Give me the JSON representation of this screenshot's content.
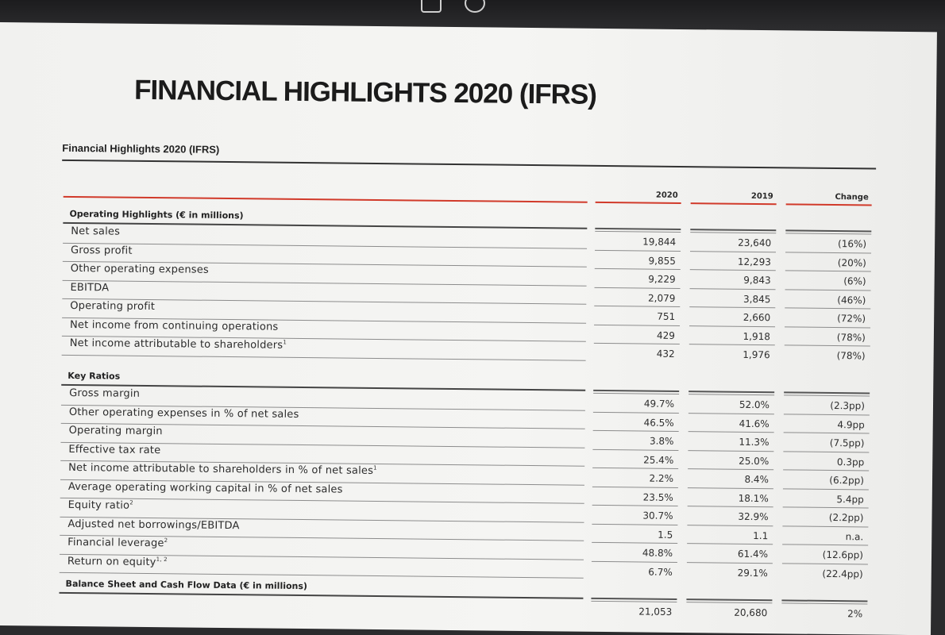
{
  "document": {
    "main_title": "FINANCIAL HIGHLIGHTS 2020 (IFRS)",
    "subtitle": "Financial Highlights 2020 (IFRS)"
  },
  "columns": [
    "2020",
    "2019",
    "Change"
  ],
  "sections": [
    {
      "title": "Operating Highlights (€ in millions)",
      "rows": [
        {
          "label": "Net sales",
          "sup": "",
          "v2020": "19,844",
          "v2019": "23,640",
          "change": "(16%)"
        },
        {
          "label": "Gross profit",
          "sup": "",
          "v2020": "9,855",
          "v2019": "12,293",
          "change": "(20%)"
        },
        {
          "label": "Other operating expenses",
          "sup": "",
          "v2020": "9,229",
          "v2019": "9,843",
          "change": "(6%)"
        },
        {
          "label": "EBITDA",
          "sup": "",
          "v2020": "2,079",
          "v2019": "3,845",
          "change": "(46%)"
        },
        {
          "label": "Operating profit",
          "sup": "",
          "v2020": "751",
          "v2019": "2,660",
          "change": "(72%)"
        },
        {
          "label": "Net income from continuing operations",
          "sup": "",
          "v2020": "429",
          "v2019": "1,918",
          "change": "(78%)"
        },
        {
          "label": "Net income attributable to shareholders",
          "sup": "1",
          "v2020": "432",
          "v2019": "1,976",
          "change": "(78%)"
        }
      ]
    },
    {
      "title": "Key Ratios",
      "rows": [
        {
          "label": "Gross margin",
          "sup": "",
          "v2020": "49.7%",
          "v2019": "52.0%",
          "change": "(2.3pp)"
        },
        {
          "label": "Other operating expenses in % of net sales",
          "sup": "",
          "v2020": "46.5%",
          "v2019": "41.6%",
          "change": "4.9pp"
        },
        {
          "label": "Operating margin",
          "sup": "",
          "v2020": "3.8%",
          "v2019": "11.3%",
          "change": "(7.5pp)"
        },
        {
          "label": "Effective tax rate",
          "sup": "",
          "v2020": "25.4%",
          "v2019": "25.0%",
          "change": "0.3pp"
        },
        {
          "label": "Net income attributable to shareholders in % of net sales",
          "sup": "1",
          "v2020": "2.2%",
          "v2019": "8.4%",
          "change": "(6.2pp)"
        },
        {
          "label": "Average operating working capital in % of net sales",
          "sup": "",
          "v2020": "23.5%",
          "v2019": "18.1%",
          "change": "5.4pp"
        },
        {
          "label": "Equity ratio",
          "sup": "2",
          "v2020": "30.7%",
          "v2019": "32.9%",
          "change": "(2.2pp)"
        },
        {
          "label": "Adjusted net borrowings/EBITDA",
          "sup": "",
          "v2020": "1.5",
          "v2019": "1.1",
          "change": "n.a."
        },
        {
          "label": "Financial leverage",
          "sup": "2",
          "v2020": "48.8%",
          "v2019": "61.4%",
          "change": "(12.6pp)"
        },
        {
          "label": "Return on equity",
          "sup": "1, 2",
          "v2020": "6.7%",
          "v2019": "29.1%",
          "change": "(22.4pp)"
        }
      ]
    },
    {
      "title": "Balance Sheet and Cash Flow Data (€ in millions)",
      "rows": [
        {
          "label": "",
          "sup": "",
          "v2020": "21,053",
          "v2019": "20,680",
          "change": "2%"
        }
      ]
    }
  ]
}
